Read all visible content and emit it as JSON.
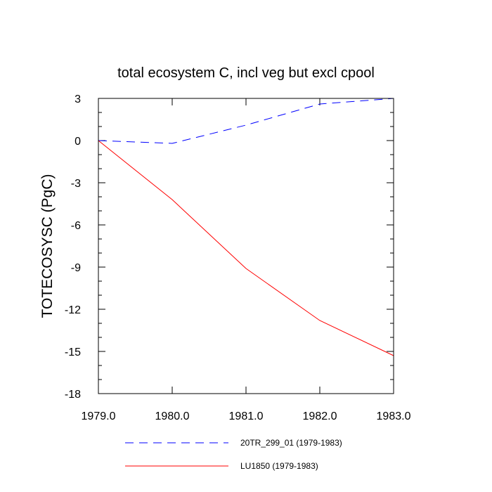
{
  "chart_data": {
    "type": "line",
    "title": "total ecosystem C, incl veg but excl cpool",
    "xlabel": "",
    "ylabel": "TOTECOSYSC  (PgC)",
    "xlim": [
      1979.0,
      1983.0
    ],
    "ylim": [
      -18,
      3
    ],
    "x": [
      1979.0,
      1980.0,
      1981.0,
      1982.0,
      1983.0
    ],
    "xticks": [
      "1979.0",
      "1980.0",
      "1981.0",
      "1982.0",
      "1983.0"
    ],
    "yticks": [
      "3",
      "0",
      "-3",
      "-6",
      "-9",
      "-12",
      "-15",
      "-18"
    ],
    "ytick_values": [
      3,
      0,
      -3,
      -6,
      -9,
      -12,
      -15,
      -18
    ],
    "grid": false,
    "legend_position": "bottom",
    "series": [
      {
        "name": "20TR_299_01 (1979-1983)",
        "values": [
          0.0,
          -0.2,
          1.1,
          2.6,
          3.0
        ],
        "color": "#0000ff",
        "style": "dashed"
      },
      {
        "name": "LU1850 (1979-1983)",
        "values": [
          0.0,
          -4.2,
          -9.1,
          -12.8,
          -15.3
        ],
        "color": "#ff0000",
        "style": "solid"
      }
    ]
  }
}
